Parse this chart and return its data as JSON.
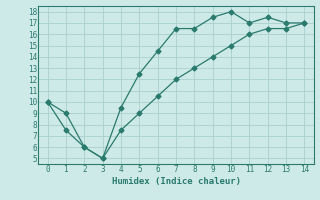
{
  "line1_x": [
    0,
    1,
    2,
    3,
    4,
    5,
    6,
    7,
    8,
    9,
    10,
    11,
    12,
    13,
    14
  ],
  "line1_y": [
    10,
    7.5,
    6,
    5,
    9.5,
    12.5,
    14.5,
    16.5,
    16.5,
    17.5,
    18,
    17,
    17.5,
    17,
    17
  ],
  "line2_x": [
    0,
    1,
    2,
    3,
    4,
    5,
    6,
    7,
    8,
    9,
    10,
    11,
    12,
    13,
    14
  ],
  "line2_y": [
    10,
    9,
    6,
    5,
    7.5,
    9,
    10.5,
    12,
    13,
    14,
    15,
    16,
    16.5,
    16.5,
    17
  ],
  "line_color": "#2a7a6e",
  "bg_color": "#ceeae8",
  "grid_color": "#aacfcc",
  "xlabel": "Humidex (Indice chaleur)",
  "xlim": [
    -0.5,
    14.5
  ],
  "ylim": [
    4.5,
    18.5
  ],
  "xticks": [
    0,
    1,
    2,
    3,
    4,
    5,
    6,
    7,
    8,
    9,
    10,
    11,
    12,
    13,
    14
  ],
  "yticks": [
    5,
    6,
    7,
    8,
    9,
    10,
    11,
    12,
    13,
    14,
    15,
    16,
    17,
    18
  ]
}
